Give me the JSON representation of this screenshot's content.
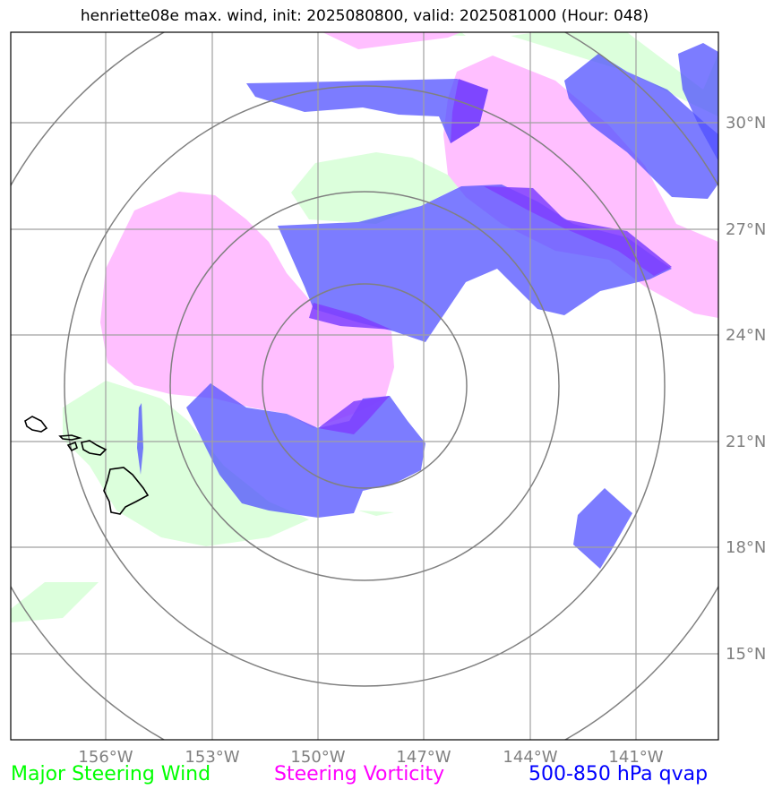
{
  "title": "henriette08e max. wind, init: 2025080800, valid: 2025081000 (Hour: 048)",
  "map": {
    "extent": {
      "lon_min": -158.7,
      "lon_max": -138.75,
      "lat_min": 12.75,
      "lat_max": 32.8
    },
    "longitude_ticks": [
      {
        "value": -156,
        "label": "156°W"
      },
      {
        "value": -153,
        "label": "153°W"
      },
      {
        "value": -150,
        "label": "150°W"
      },
      {
        "value": -147,
        "label": "147°W"
      },
      {
        "value": -144,
        "label": "144°W"
      },
      {
        "value": -141,
        "label": "141°W"
      }
    ],
    "latitude_ticks": [
      {
        "value": 30,
        "label": "30°N"
      },
      {
        "value": 27,
        "label": "27°N"
      },
      {
        "value": 24,
        "label": "24°N"
      },
      {
        "value": 21,
        "label": "21°N"
      },
      {
        "value": 18,
        "label": "18°N"
      },
      {
        "value": 15,
        "label": "15°N"
      }
    ],
    "gridlines": true,
    "range_rings": {
      "center": {
        "lon": -148.75,
        "lat": 22.6
      },
      "radii_deg": [
        2.9,
        5.5,
        8.5,
        11.5
      ]
    },
    "colors": {
      "steering_wind": "#dcffdc",
      "steering_vorticity": "#ffbfff",
      "qvap": "#5050ff",
      "qvap_overlap_vorticity": "#7f3fff",
      "gridline": "#a0a0a0",
      "ring": "#808080",
      "coastline": "#000000"
    }
  },
  "legend": [
    {
      "label": "Major Steering Wind",
      "color": "#00ff00"
    },
    {
      "label": "Steering Vorticity",
      "color": "#ff00ff"
    },
    {
      "label": "500-850 hPa qvap",
      "color": "#0000ff"
    }
  ]
}
